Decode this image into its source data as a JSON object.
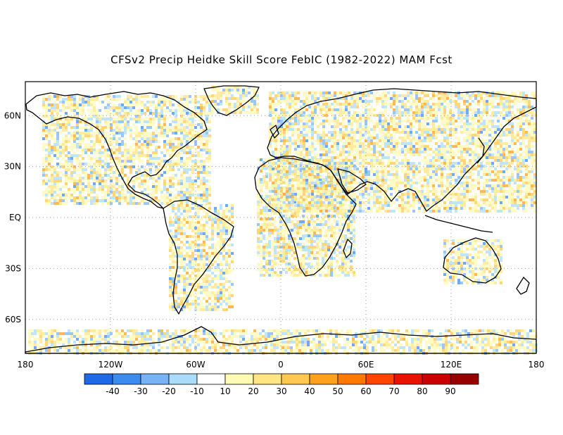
{
  "title": "CFSv2 Precip Heidke Skill Score FebIC (1982-2022) MAM Fcst",
  "x_ticks": [
    "180",
    "120W",
    "60W",
    "0",
    "60E",
    "120E",
    "180"
  ],
  "y_ticks": [
    "60N",
    "30N",
    "EQ",
    "30S",
    "60S"
  ],
  "colorbar": {
    "labels": [
      "-40",
      "-30",
      "-20",
      "-10",
      "10",
      "20",
      "30",
      "40",
      "50",
      "60",
      "70",
      "80",
      "90"
    ],
    "colors": [
      "#1e6ae6",
      "#3c8cf0",
      "#78b4f5",
      "#aadcfa",
      "#ffffff",
      "#fffab4",
      "#ffe682",
      "#ffc850",
      "#ffa01e",
      "#ff7800",
      "#ff4600",
      "#e61400",
      "#c80000",
      "#960000"
    ]
  },
  "map": {
    "projection": "cylindrical-equidistant",
    "lon_range": [
      -180,
      180
    ],
    "lat_range": [
      -80,
      80
    ],
    "grid": "dotted"
  }
}
